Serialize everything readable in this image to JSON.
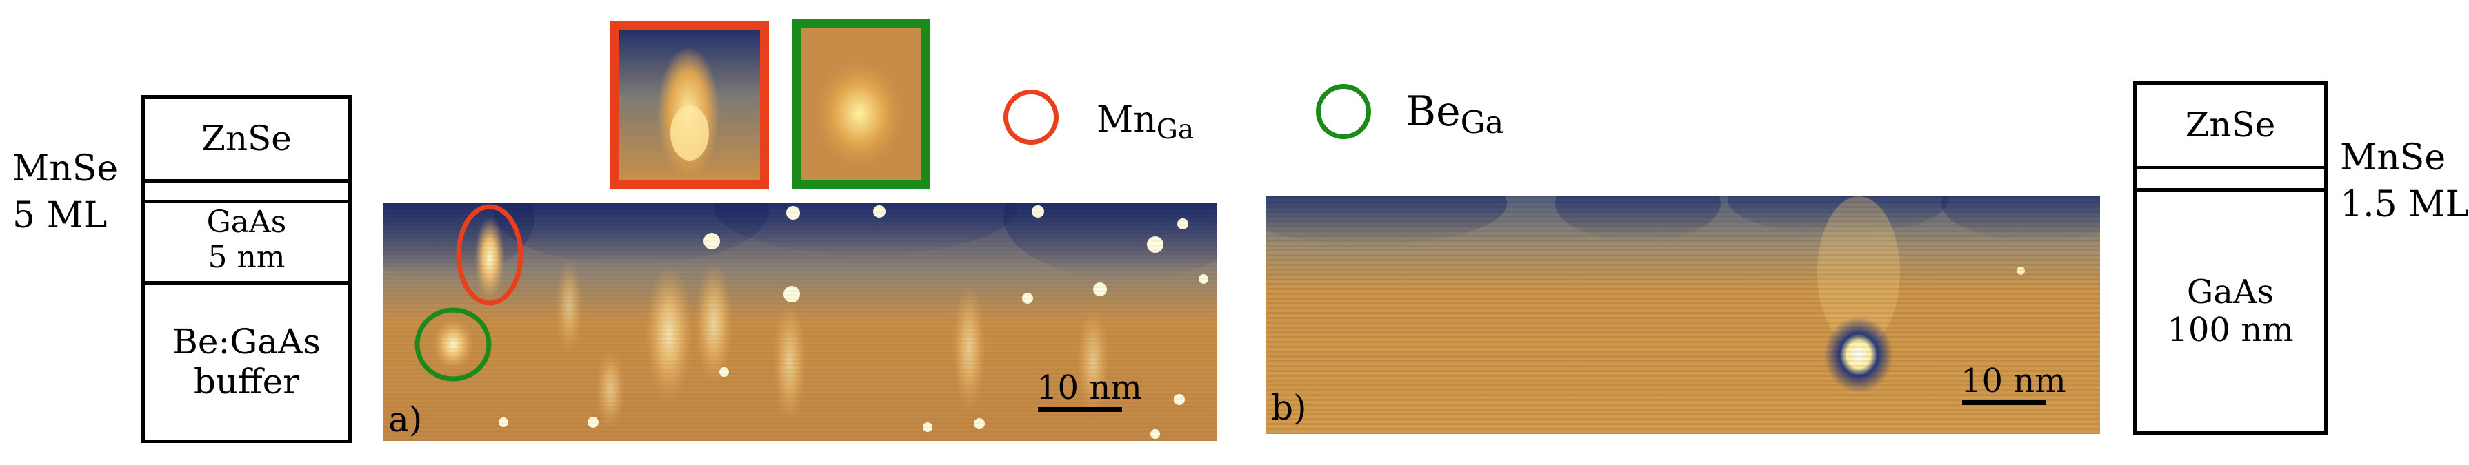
{
  "left_stack": {
    "side_label_line1": "MnSe",
    "side_label_line2": "5 ML",
    "layers": [
      "ZnSe",
      "GaAs",
      "5 nm",
      "Be:GaAs",
      "buffer"
    ]
  },
  "right_stack": {
    "side_label_line1": "MnSe",
    "side_label_line2": "1.5 ML",
    "layers": [
      "ZnSe",
      "GaAs",
      "100 nm"
    ]
  },
  "legend": {
    "mn": {
      "base": "Mn",
      "sub": "Ga",
      "color": "#e8401c"
    },
    "be": {
      "base": "Be",
      "sub": "Ga",
      "color": "#1a8a1a"
    }
  },
  "panel_a": {
    "label": "a)",
    "scale": "10 nm"
  },
  "panel_b": {
    "label": "b)",
    "scale": "10 nm"
  },
  "colors": {
    "stm_dark": "#1e2f6b",
    "stm_mid": "#c98f45",
    "stm_bright": "#fff6c0",
    "mn_marker": "#e8401c",
    "be_marker": "#1a8a1a"
  }
}
